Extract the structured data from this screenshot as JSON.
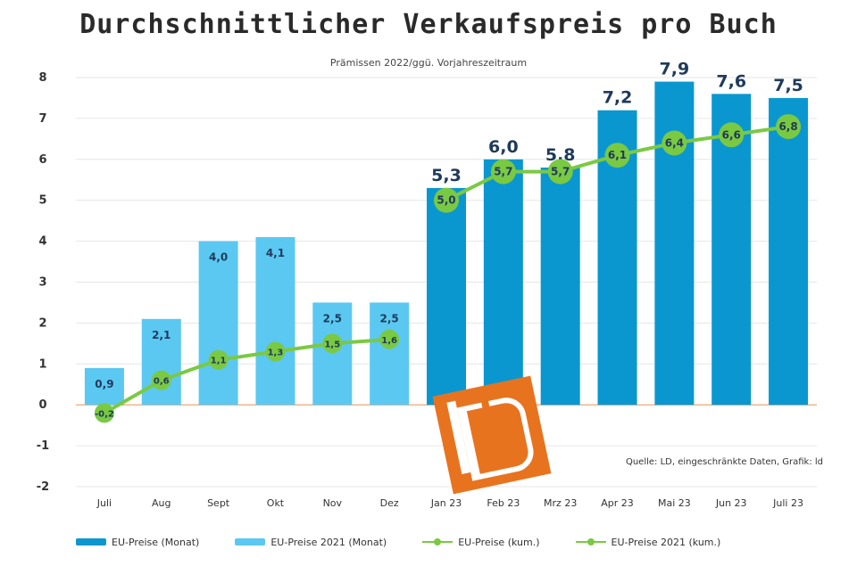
{
  "chart_data": {
    "type": "bar",
    "title": "Durchschnittlicher Verkaufspreis pro Buch",
    "subtitle": "Prämissen 2022/ggü. Vorjahreszeitraum",
    "source": "Quelle: LD, eingeschränkte Daten, Grafik: ld",
    "categories": [
      "Juli",
      "Aug",
      "Sept",
      "Okt",
      "Nov",
      "Dez",
      "Jan 23",
      "Feb 23",
      "Mrz 23",
      "Apr 23",
      "Mai 23",
      "Jun 23",
      "Juli 23"
    ],
    "ylim": [
      -2,
      8
    ],
    "yticks": [
      -2,
      -1,
      0,
      1,
      2,
      3,
      4,
      5,
      6,
      7,
      8
    ],
    "grid": true,
    "legend_position": "bottom",
    "series": [
      {
        "name": "EU-Preise (Monat)",
        "kind": "bar",
        "color": "#0a97d0",
        "values": [
          null,
          null,
          null,
          null,
          null,
          null,
          5.3,
          6.0,
          5.8,
          7.2,
          7.9,
          7.6,
          7.5
        ],
        "labels": [
          "",
          "",
          "",
          "",
          "",
          "",
          "5,3",
          "6,0",
          "5,8",
          "7,2",
          "7,9",
          "7,6",
          "7,5"
        ]
      },
      {
        "name": "EU-Preise 2021 (Monat)",
        "kind": "bar",
        "color": "#5bc8f2",
        "values": [
          0.9,
          2.1,
          4.0,
          4.1,
          2.5,
          2.5,
          null,
          null,
          null,
          null,
          null,
          null,
          null
        ],
        "labels": [
          "0,9",
          "2,1",
          "4,0",
          "4,1",
          "2,5",
          "2,5",
          "",
          "",
          "",
          "",
          "",
          "",
          ""
        ]
      },
      {
        "name": "EU-Preise (kum.)",
        "kind": "line",
        "color": "#7ac943",
        "values": [
          null,
          null,
          null,
          null,
          null,
          null,
          5.0,
          5.7,
          5.7,
          6.1,
          6.4,
          6.6,
          6.8
        ],
        "labels": [
          "",
          "",
          "",
          "",
          "",
          "",
          "5,0",
          "5,7",
          "5,7",
          "6,1",
          "6,4",
          "6,6",
          "6,8"
        ]
      },
      {
        "name": "EU-Preise 2021 (kum.)",
        "kind": "line",
        "color": "#7ac943",
        "values": [
          -0.2,
          0.6,
          1.1,
          1.3,
          1.5,
          1.6,
          null,
          null,
          null,
          null,
          null,
          null,
          null
        ],
        "labels": [
          "-0,2",
          "0,6",
          "1,1",
          "1,3",
          "1,5",
          "1,6",
          "",
          "",
          "",
          "",
          "",
          "",
          ""
        ]
      }
    ]
  },
  "legend": {
    "items": [
      {
        "label": "EU-Preise (Monat)",
        "kind": "bar",
        "color": "#0a97d0"
      },
      {
        "label": "EU-Preise 2021 (Monat)",
        "kind": "bar",
        "color": "#5bc8f2"
      },
      {
        "label": "EU-Preise (kum.)",
        "kind": "line",
        "color": "#7ac943"
      },
      {
        "label": "EU-Preise 2021 (kum.)",
        "kind": "line",
        "color": "#7ac943"
      }
    ]
  },
  "logo": {
    "text": "LD",
    "color": "#e8731f"
  }
}
